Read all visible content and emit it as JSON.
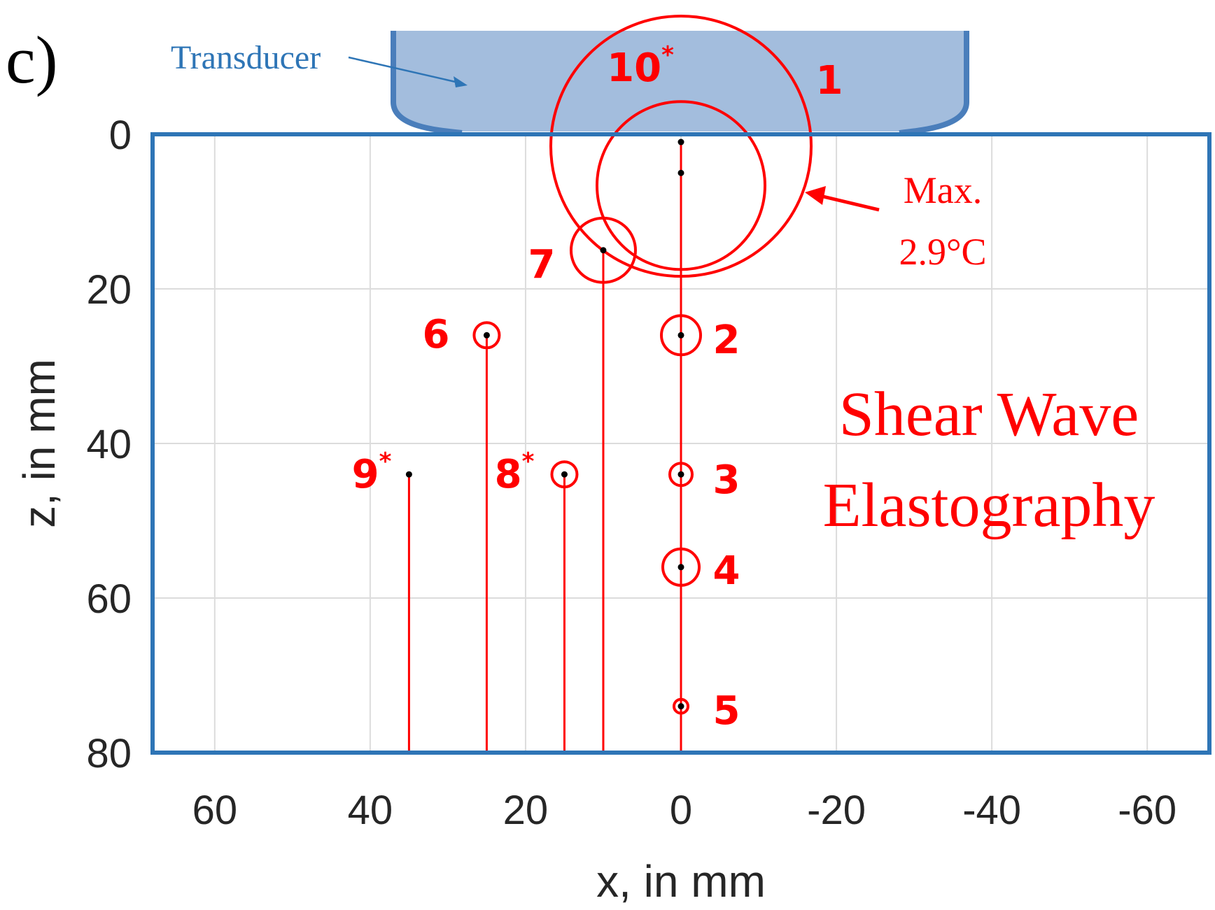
{
  "panel_label": "c)",
  "transducer_label": "Transducer",
  "colors": {
    "frame": "#2e75b6",
    "transducer_fill": "#a3bddd",
    "transducer_stroke": "#4a7ebb",
    "marks": "#ff0000",
    "grid": "#dcdcdc",
    "dots": "#000000"
  },
  "chart_data": {
    "type": "scatter",
    "xlabel": "x, in mm",
    "ylabel": "z, in mm",
    "xlim": [
      68,
      -68
    ],
    "ylim": [
      0,
      80
    ],
    "x_reversed": true,
    "y_reversed": true,
    "xticks": [
      60,
      40,
      20,
      0,
      -20,
      -40,
      -60
    ],
    "xtick_labels": [
      "60",
      "40",
      "20",
      "0",
      "-20",
      "-40",
      "-60"
    ],
    "yticks": [
      0,
      20,
      40,
      60,
      80
    ],
    "ytick_labels": [
      "0",
      "20",
      "40",
      "60",
      "80"
    ],
    "grid": true,
    "points": [
      {
        "id": "1",
        "label": "1",
        "star": false,
        "x": 0,
        "z": 1
      },
      {
        "id": "10",
        "label": "10",
        "star": true,
        "x": 0,
        "z": 5
      },
      {
        "id": "7",
        "label": "7",
        "star": false,
        "x": 10,
        "z": 15
      },
      {
        "id": "2",
        "label": "2",
        "star": false,
        "x": 0,
        "z": 26
      },
      {
        "id": "6",
        "label": "6",
        "star": false,
        "x": 25,
        "z": 26
      },
      {
        "id": "3",
        "label": "3",
        "star": false,
        "x": 0,
        "z": 44
      },
      {
        "id": "8",
        "label": "8",
        "star": true,
        "x": 15,
        "z": 44
      },
      {
        "id": "9",
        "label": "9",
        "star": true,
        "x": 35,
        "z": 44
      },
      {
        "id": "4",
        "label": "4",
        "star": false,
        "x": 0,
        "z": 56
      },
      {
        "id": "5",
        "label": "5",
        "star": false,
        "x": 0,
        "z": 74
      }
    ],
    "max_annotation": [
      "Max.",
      "2.9°C"
    ],
    "method_label": [
      "Shear Wave",
      "Elastography"
    ]
  }
}
